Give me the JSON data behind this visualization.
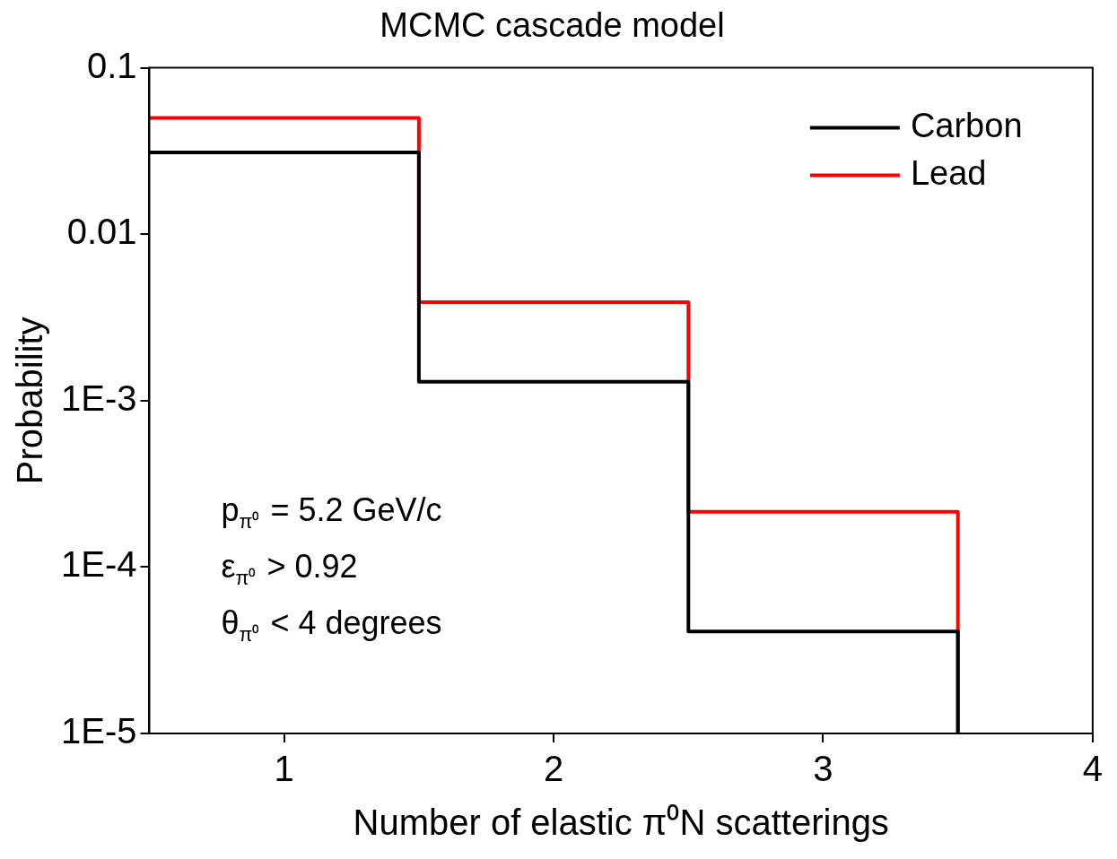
{
  "chart_data": {
    "type": "step",
    "title": "MCMC cascade model",
    "xlabel": "Number of elastic π⁰N scatterings",
    "ylabel": "Probability",
    "x": [
      0.5,
      1.5,
      2.5,
      3.5
    ],
    "series": [
      {
        "name": "Carbon",
        "color": "#000000",
        "values": [
          0.031,
          0.0013,
          4.1e-05,
          1e-05
        ]
      },
      {
        "name": "Lead",
        "color": "#ff0000",
        "values": [
          0.05,
          0.0039,
          0.000215,
          1e-05
        ]
      }
    ],
    "log": "y",
    "xlim": [
      0.5,
      4
    ],
    "xticks": [
      1,
      2,
      3,
      4
    ],
    "ylim": [
      1e-05,
      0.1
    ],
    "yticks": [
      {
        "value": 1e-05,
        "label": "1E-5"
      },
      {
        "value": 0.0001,
        "label": "1E-4"
      },
      {
        "value": 0.001,
        "label": "1E-3"
      },
      {
        "value": 0.01,
        "label": "0.01"
      },
      {
        "value": 0.1,
        "label": "0.1"
      }
    ],
    "grid": false,
    "legend": "top right",
    "marker": "none",
    "line_style": "solid",
    "annotations": [
      "p$_{π⁰}$ = 5.2 GeV/c",
      "ε$_{π⁰}$ > 0.92",
      "θ$_{π⁰}$ < 4 degrees"
    ]
  }
}
